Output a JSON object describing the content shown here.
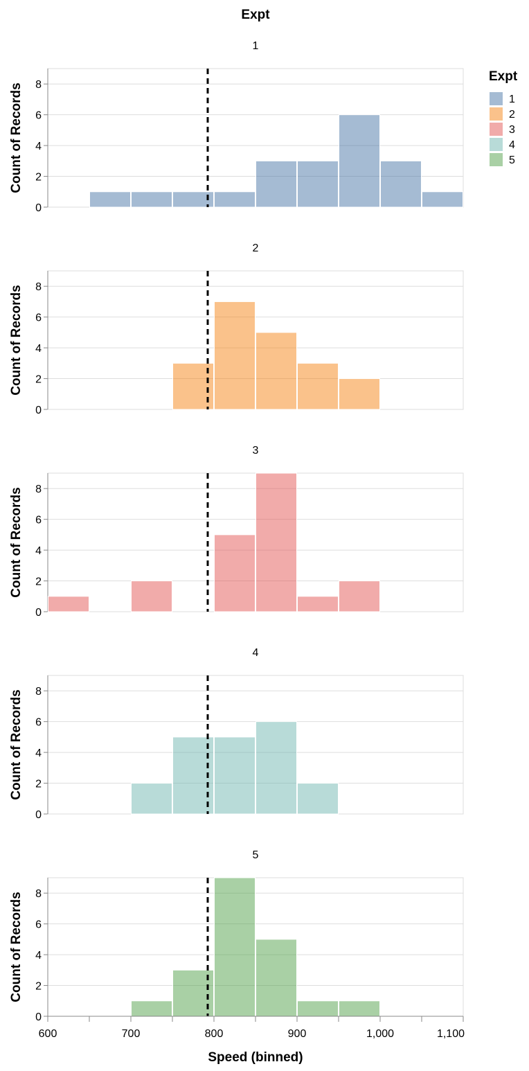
{
  "chart_data": {
    "type": "bar",
    "title": "Expt",
    "xlabel": "Speed (binned)",
    "ylabel": "Count of Records",
    "bin_width": 50,
    "xlim": [
      600,
      1100
    ],
    "x_ticks": [
      600,
      700,
      800,
      900,
      1000,
      1100
    ],
    "x_tick_labels": [
      "600",
      "700",
      "800",
      "900",
      "1,000",
      "1,100"
    ],
    "ylim": [
      0,
      9
    ],
    "y_ticks": [
      0,
      2,
      4,
      6,
      8
    ],
    "y_tick_labels": [
      "0",
      "2",
      "4",
      "6",
      "8"
    ],
    "reference_line_x": 792.5,
    "grid": true,
    "legend": {
      "title": "Expt",
      "position": "top-right",
      "entries": [
        {
          "label": "1",
          "color": "#4c78a8"
        },
        {
          "label": "2",
          "color": "#f58518"
        },
        {
          "label": "3",
          "color": "#e45756"
        },
        {
          "label": "4",
          "color": "#72b7b2"
        },
        {
          "label": "5",
          "color": "#54a24b"
        }
      ]
    },
    "bar_opacity": 0.5,
    "facets": [
      {
        "title": "1",
        "color": "#4c78a8",
        "bins": [
          {
            "x0": 650,
            "x1": 700,
            "count": 1
          },
          {
            "x0": 700,
            "x1": 750,
            "count": 1
          },
          {
            "x0": 750,
            "x1": 800,
            "count": 1
          },
          {
            "x0": 800,
            "x1": 850,
            "count": 1
          },
          {
            "x0": 850,
            "x1": 900,
            "count": 3
          },
          {
            "x0": 900,
            "x1": 950,
            "count": 3
          },
          {
            "x0": 950,
            "x1": 1000,
            "count": 6
          },
          {
            "x0": 1000,
            "x1": 1050,
            "count": 3
          },
          {
            "x0": 1050,
            "x1": 1100,
            "count": 1
          }
        ]
      },
      {
        "title": "2",
        "color": "#f58518",
        "bins": [
          {
            "x0": 750,
            "x1": 800,
            "count": 3
          },
          {
            "x0": 800,
            "x1": 850,
            "count": 7
          },
          {
            "x0": 850,
            "x1": 900,
            "count": 5
          },
          {
            "x0": 900,
            "x1": 950,
            "count": 3
          },
          {
            "x0": 950,
            "x1": 1000,
            "count": 2
          }
        ]
      },
      {
        "title": "3",
        "color": "#e45756",
        "bins": [
          {
            "x0": 600,
            "x1": 650,
            "count": 1
          },
          {
            "x0": 700,
            "x1": 750,
            "count": 2
          },
          {
            "x0": 800,
            "x1": 850,
            "count": 5
          },
          {
            "x0": 850,
            "x1": 900,
            "count": 9
          },
          {
            "x0": 900,
            "x1": 950,
            "count": 1
          },
          {
            "x0": 950,
            "x1": 1000,
            "count": 2
          }
        ]
      },
      {
        "title": "4",
        "color": "#72b7b2",
        "bins": [
          {
            "x0": 700,
            "x1": 750,
            "count": 2
          },
          {
            "x0": 750,
            "x1": 800,
            "count": 5
          },
          {
            "x0": 800,
            "x1": 850,
            "count": 5
          },
          {
            "x0": 850,
            "x1": 900,
            "count": 6
          },
          {
            "x0": 900,
            "x1": 950,
            "count": 2
          }
        ]
      },
      {
        "title": "5",
        "color": "#54a24b",
        "bins": [
          {
            "x0": 700,
            "x1": 750,
            "count": 1
          },
          {
            "x0": 750,
            "x1": 800,
            "count": 3
          },
          {
            "x0": 800,
            "x1": 850,
            "count": 9
          },
          {
            "x0": 850,
            "x1": 900,
            "count": 5
          },
          {
            "x0": 900,
            "x1": 950,
            "count": 1
          },
          {
            "x0": 950,
            "x1": 1000,
            "count": 1
          }
        ]
      }
    ]
  }
}
